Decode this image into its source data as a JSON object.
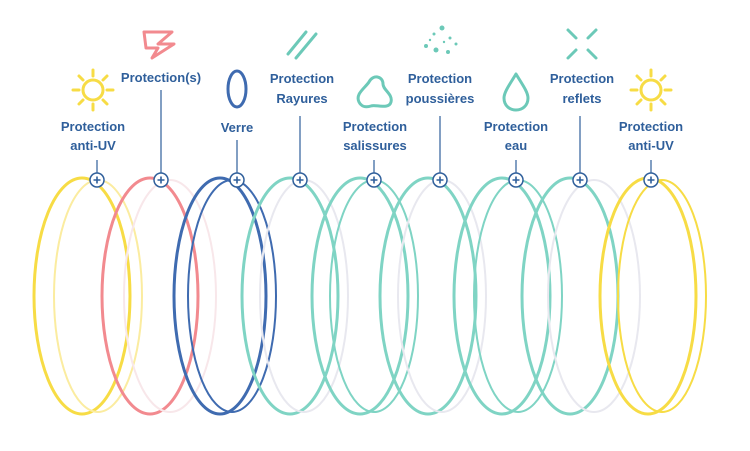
{
  "colors": {
    "label": "#2f5f9b",
    "yellow": "#f7dc45",
    "pink": "#f28a8f",
    "blue": "#3f6bb0",
    "teal": "#7fd4c4",
    "icon_teal": "#6cc9b8",
    "pin": "#2f5f9b"
  },
  "layers": [
    {
      "id": "uv-left",
      "line1": "Protection",
      "line2": "anti-UV",
      "icon": "sun-icon",
      "color": "yellow"
    },
    {
      "id": "protections",
      "line1": "Protection(s)",
      "line2": "",
      "icon": "lightning-icon",
      "color": "pink"
    },
    {
      "id": "verre",
      "line1": "Verre",
      "line2": "",
      "icon": "lens-icon",
      "color": "blue"
    },
    {
      "id": "rayures",
      "line1": "Protection",
      "line2": "Rayures",
      "icon": "scratch-icon",
      "color": "teal"
    },
    {
      "id": "salissures",
      "line1": "Protection",
      "line2": "salissures",
      "icon": "stain-icon",
      "color": "teal"
    },
    {
      "id": "poussieres",
      "line1": "Protection",
      "line2": "poussières",
      "icon": "dust-icon",
      "color": "teal"
    },
    {
      "id": "eau",
      "line1": "Protection",
      "line2": "eau",
      "icon": "water-drop-icon",
      "color": "teal"
    },
    {
      "id": "reflets",
      "line1": "Protection",
      "line2": "reflets",
      "icon": "reflection-icon",
      "color": "teal"
    },
    {
      "id": "uv-right",
      "line1": "Protection",
      "line2": "anti-UV",
      "icon": "sun-icon",
      "color": "yellow"
    }
  ]
}
